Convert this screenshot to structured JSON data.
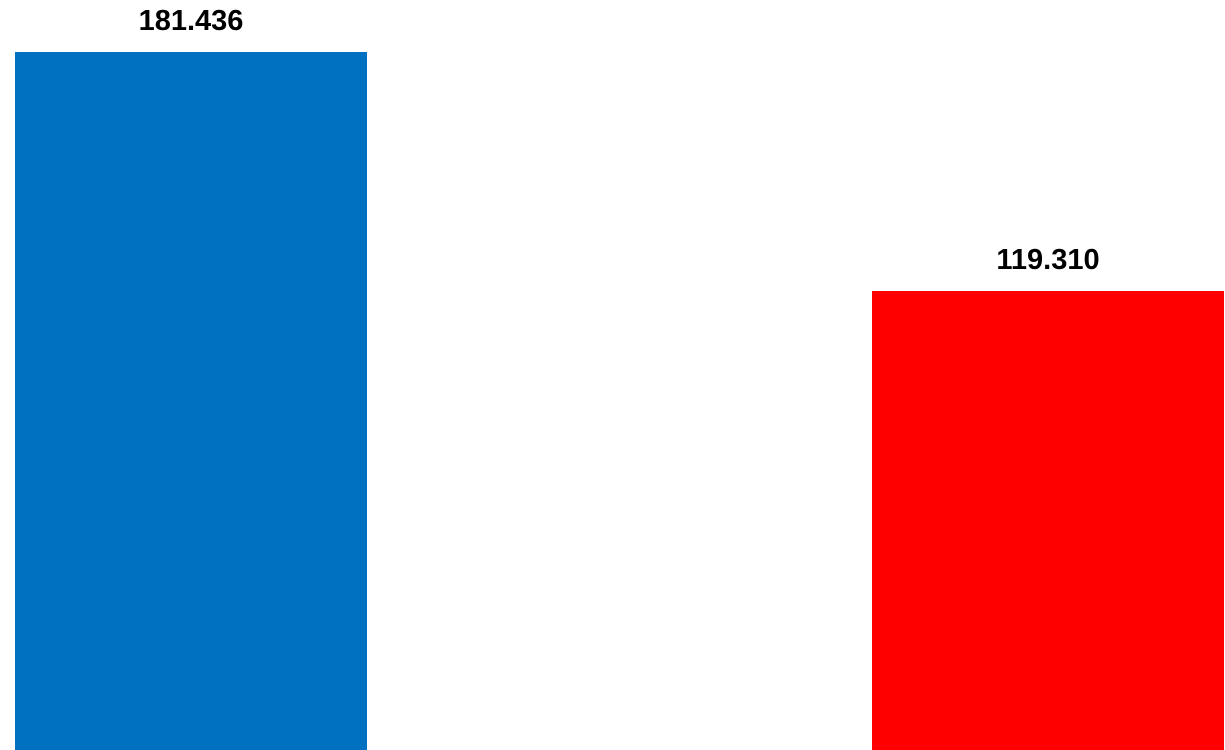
{
  "chart_data": {
    "type": "bar",
    "categories": [
      "",
      ""
    ],
    "values": [
      181.436,
      119.31
    ],
    "value_labels": [
      "181.436",
      "119.310"
    ],
    "bar_colors": [
      "#0070C0",
      "#FF0000"
    ],
    "title": "",
    "xlabel": "",
    "ylabel": "",
    "ylim": [
      0,
      181.436
    ],
    "grid": false,
    "legend": "none"
  }
}
